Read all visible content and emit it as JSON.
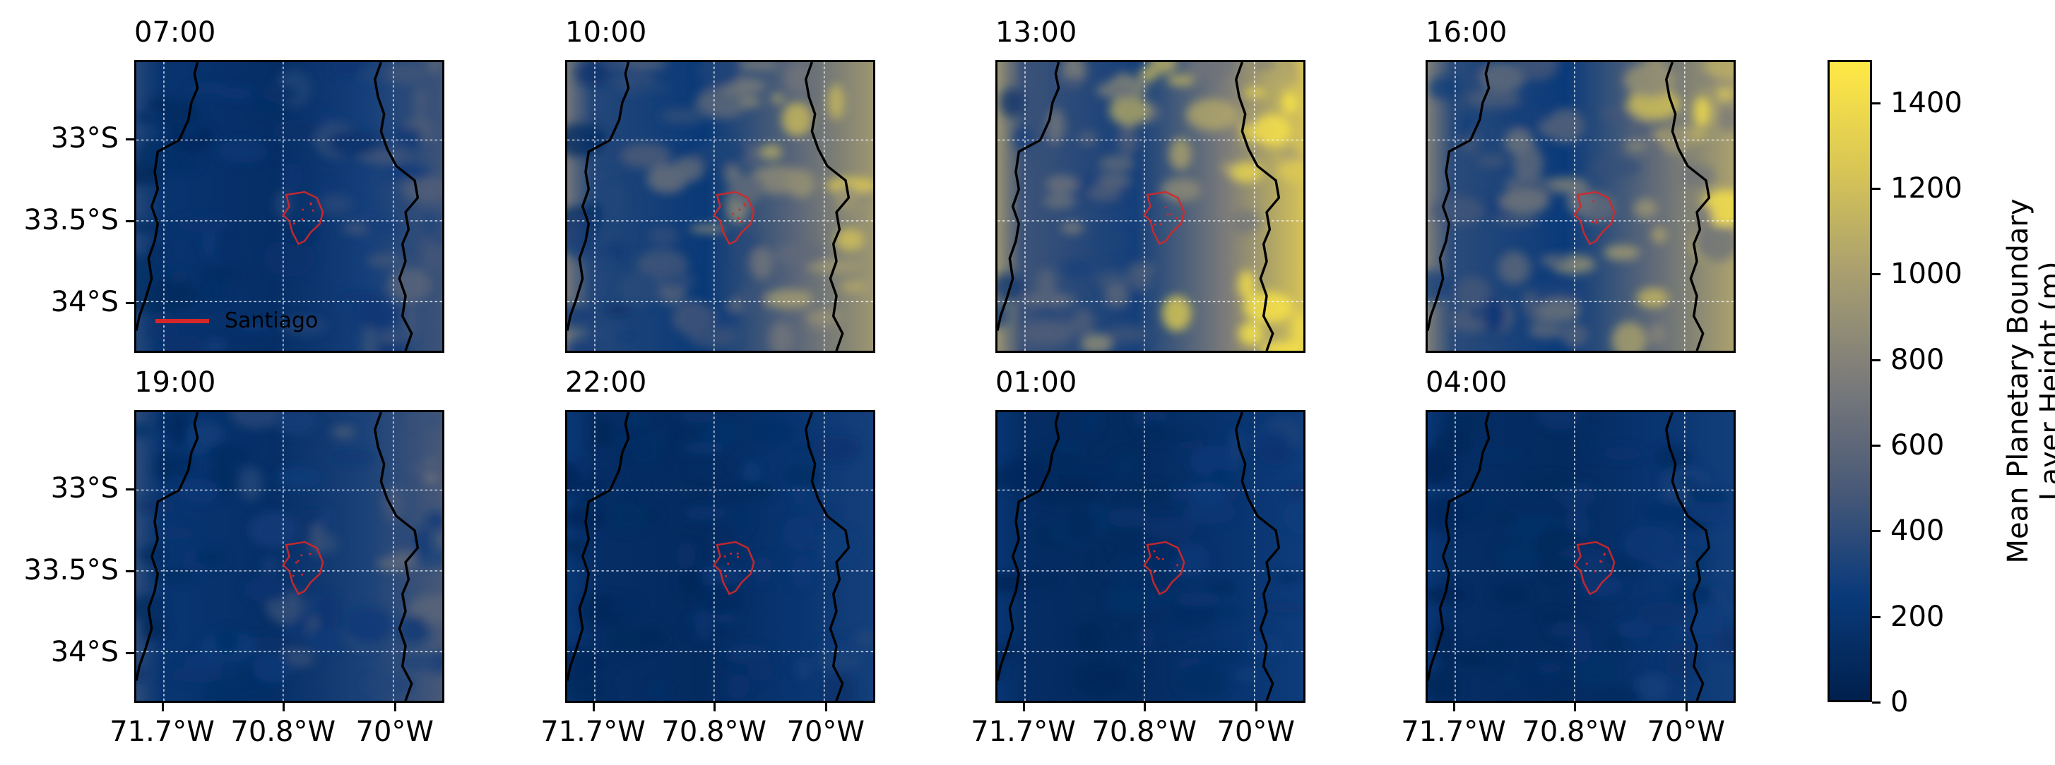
{
  "panels": [
    {
      "time": "07:00",
      "intensity": 0.3
    },
    {
      "time": "10:00",
      "intensity": 0.68
    },
    {
      "time": "13:00",
      "intensity": 0.9
    },
    {
      "time": "16:00",
      "intensity": 0.74
    },
    {
      "time": "19:00",
      "intensity": 0.33
    },
    {
      "time": "22:00",
      "intensity": 0.18
    },
    {
      "time": "01:00",
      "intensity": 0.16
    },
    {
      "time": "04:00",
      "intensity": 0.17
    }
  ],
  "axes": {
    "y_ticks": [
      "33°S",
      "33.5°S",
      "34°S"
    ],
    "x_ticks": [
      "71.7°W",
      "70.8°W",
      "70°W"
    ]
  },
  "legend": {
    "label": "Santiago",
    "color": "#d62728"
  },
  "colorbar": {
    "title_line1": "Mean Planetary Boundary",
    "title_line2": "Layer Height (m)",
    "ticks": [
      "0",
      "200",
      "400",
      "600",
      "800",
      "1000",
      "1200",
      "1400"
    ],
    "min": 0,
    "max": 1500,
    "colormap": [
      "#00204d",
      "#0a3a7a",
      "#4a5a78",
      "#7b7b7a",
      "#a89e70",
      "#d9c655",
      "#ffe945"
    ]
  }
}
